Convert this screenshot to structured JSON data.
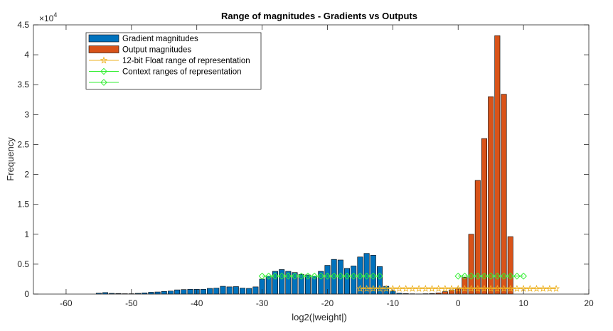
{
  "chart_data": {
    "type": "bar",
    "title": "Range of magnitudes - Gradients vs Outputs",
    "xlabel": "log2(|weight|)",
    "ylabel": "Frequency",
    "xlim": [
      -65,
      20
    ],
    "ylim": [
      0,
      45000
    ],
    "y_exponent_label": "×10",
    "y_exponent_power": "4",
    "x_ticks": [
      -60,
      -50,
      -40,
      -30,
      -20,
      -10,
      0,
      10,
      20
    ],
    "y_ticks": [
      {
        "value": 0,
        "label": "0"
      },
      {
        "value": 5000,
        "label": "0.5"
      },
      {
        "value": 10000,
        "label": "1"
      },
      {
        "value": 15000,
        "label": "1.5"
      },
      {
        "value": 20000,
        "label": "2"
      },
      {
        "value": 25000,
        "label": "2.5"
      },
      {
        "value": 30000,
        "label": "3"
      },
      {
        "value": 35000,
        "label": "3.5"
      },
      {
        "value": 40000,
        "label": "4"
      },
      {
        "value": 45000,
        "label": "4.5"
      }
    ],
    "grid": false,
    "legend_placement": "top-left",
    "legend": [
      {
        "label": "Gradient magnitudes",
        "kind": "patch",
        "color": "#0072BD"
      },
      {
        "label": "Output magnitudes",
        "kind": "patch",
        "color": "#D95319"
      },
      {
        "label": "12-bit Float range of representation",
        "kind": "line-star",
        "color": "#EDB120"
      },
      {
        "label": "Context ranges of representation",
        "kind": "line-diamond",
        "color": "#33EE33"
      },
      {
        "label": "",
        "kind": "line-diamond",
        "color": "#33EE33"
      }
    ],
    "series": [
      {
        "name": "Gradient magnitudes",
        "kind": "bar",
        "color": "#0072BD",
        "bin_width": 0.8,
        "x": [
          -55,
          -54,
          -53,
          -52,
          -51,
          -50,
          -49,
          -48,
          -47,
          -46,
          -45,
          -44,
          -43,
          -42,
          -41,
          -40,
          -39,
          -38,
          -37,
          -36,
          -35,
          -34,
          -33,
          -32,
          -31,
          -30,
          -29,
          -28,
          -27,
          -26,
          -25,
          -24,
          -23,
          -22,
          -21,
          -20,
          -19,
          -18,
          -17,
          -16,
          -15,
          -14,
          -13,
          -12,
          -11,
          -10,
          -9,
          -8,
          -7
        ],
        "values": [
          150,
          250,
          120,
          100,
          60,
          60,
          120,
          200,
          300,
          350,
          450,
          500,
          700,
          750,
          800,
          800,
          800,
          950,
          1000,
          1300,
          1200,
          1250,
          1000,
          950,
          1200,
          2500,
          3000,
          3800,
          4100,
          3800,
          3600,
          3300,
          3200,
          3000,
          3800,
          4800,
          5800,
          5700,
          4300,
          4700,
          6200,
          6800,
          6500,
          4600,
          1300,
          500,
          150,
          80,
          50
        ]
      },
      {
        "name": "Output magnitudes",
        "kind": "bar",
        "color": "#D95319",
        "bin_width": 0.8,
        "x": [
          -6,
          -5,
          -4,
          -3,
          -2,
          -1,
          0,
          1,
          2,
          3,
          4,
          5,
          6,
          7,
          8
        ],
        "values": [
          30,
          60,
          100,
          200,
          400,
          700,
          1000,
          2800,
          10000,
          19000,
          26000,
          33000,
          43200,
          33400,
          9600
        ]
      },
      {
        "name": "12-bit Float range of representation",
        "kind": "line",
        "marker": "star",
        "color": "#EDB120",
        "x_range": [
          -15,
          15
        ],
        "step": 1,
        "y": 900
      },
      {
        "name": "Context ranges of representation",
        "kind": "line",
        "marker": "diamond",
        "color": "#33EE33",
        "x_range": [
          -30,
          -12
        ],
        "step": 1,
        "y": 3000
      },
      {
        "name": "",
        "kind": "line",
        "marker": "diamond",
        "color": "#33EE33",
        "x_range": [
          0,
          10
        ],
        "step": 1,
        "y": 3000
      }
    ]
  }
}
